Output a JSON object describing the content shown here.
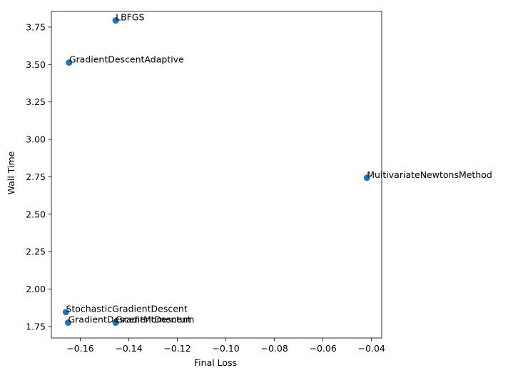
{
  "chart_data": {
    "type": "scatter",
    "title": "",
    "xlabel": "Final Loss",
    "ylabel": "Wall Time",
    "xlim": [
      -0.1719,
      -0.0358
    ],
    "ylim": [
      1.6729,
      3.8548
    ],
    "xticks": [
      -0.16,
      -0.14,
      -0.12,
      -0.1,
      -0.08,
      -0.06,
      -0.04
    ],
    "xtick_labels": [
      "−0.16",
      "−0.14",
      "−0.12",
      "−0.10",
      "−0.08",
      "−0.06",
      "−0.04"
    ],
    "yticks": [
      1.75,
      2.0,
      2.25,
      2.5,
      2.75,
      3.0,
      3.25,
      3.5,
      3.75
    ],
    "ytick_labels": [
      "1.75",
      "2.00",
      "2.25",
      "2.50",
      "2.75",
      "3.00",
      "3.25",
      "3.50",
      "3.75"
    ],
    "grid": false,
    "marker_color": "#1f77b4",
    "points": [
      {
        "label": "LBFGS",
        "x": -0.1454,
        "y": 3.7948
      },
      {
        "label": "GradientDescentAdaptive",
        "x": -0.1646,
        "y": 3.5131
      },
      {
        "label": "MultivariateNewtonsMethod",
        "x": -0.0419,
        "y": 2.7434
      },
      {
        "label": "StochasticGradientDescent",
        "x": -0.1659,
        "y": 1.8461
      },
      {
        "label": "GradientDescentMomentum",
        "x": -0.165,
        "y": 1.7752
      },
      {
        "label": "GradientDescent",
        "x": -0.1454,
        "y": 1.7752
      }
    ]
  }
}
